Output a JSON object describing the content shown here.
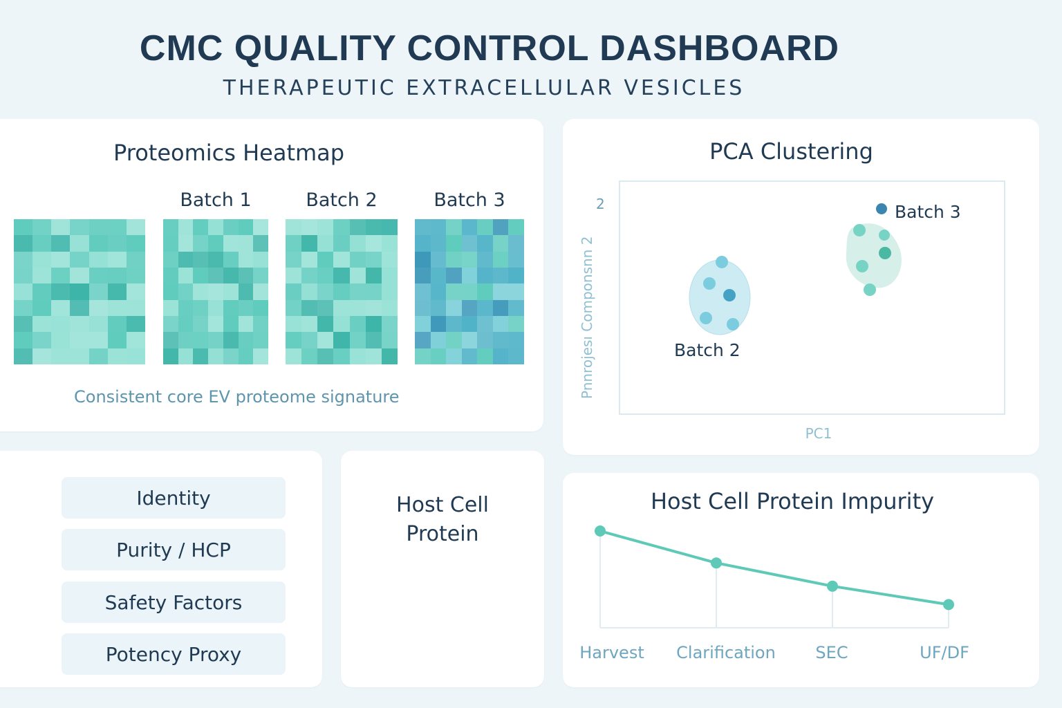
{
  "header": {
    "title": "CMC QUALITY CONTROL DASHBOARD",
    "subtitle": "THERAPEUTIC EXTRACELLULAR VESICLES"
  },
  "heatmap": {
    "title": "Proteomics Heatmap",
    "columns": [
      "",
      "Batch 1",
      "Batch 2",
      "Batch 3"
    ],
    "caption": "Consistent core EV proteome signature",
    "colors": {
      "teal_light": "#93e0d4",
      "teal_mid": "#5dcbbd",
      "teal_dark": "#3cb4a8",
      "blue_light": "#7ccfd8",
      "blue_mid": "#4fb2c7",
      "blue_dark": "#3a96b8"
    }
  },
  "pca": {
    "title": "PCA Clustering",
    "y_tick": "2",
    "y_axis_label": "Pnnrojesı Componsnn 2",
    "x_axis_label": "PC1",
    "batch2_label": "Batch 2",
    "batch3_label": "Batch 3",
    "colors": {
      "batch2_point": "#7ccce0",
      "batch2_point_dark": "#46a2c4",
      "batch2_ellipse": "#cdebf2",
      "batch3_point": "#77d4c4",
      "batch3_point_dark": "#4bb8a4",
      "batch3_ellipse": "#d7efe9",
      "batch3_marker": "#3a86b0"
    }
  },
  "checklist": {
    "items": [
      "Identity",
      "Purity / HCP",
      "Safety Factors",
      "Potency Proxy"
    ]
  },
  "hcp_label": {
    "line1": "Host Cell",
    "line2": "Protein"
  },
  "chart_data": {
    "type": "line",
    "title": "Host Cell Protein Impurity",
    "categories": [
      "Harvest",
      "Clarification",
      "SEC",
      "UF/DF"
    ],
    "series": [
      {
        "values": [
          100,
          67,
          43,
          24
        ]
      }
    ],
    "ylim": [
      0,
      110
    ],
    "grid": false,
    "color": "#5ec9b6"
  }
}
